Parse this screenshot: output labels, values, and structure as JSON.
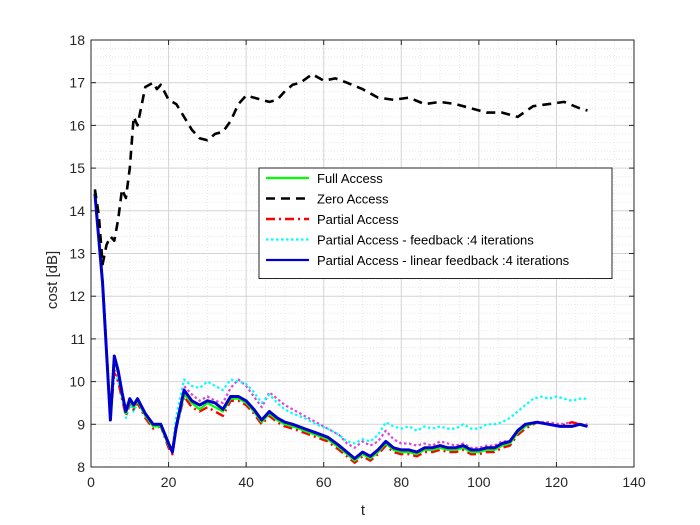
{
  "chart_data": {
    "type": "line",
    "xlabel": "t",
    "ylabel": "cost [dB]",
    "xlim": [
      0,
      140
    ],
    "ylim": [
      8,
      18
    ],
    "xticks": [
      0,
      20,
      40,
      60,
      80,
      100,
      120,
      140
    ],
    "yticks": [
      8,
      9,
      10,
      11,
      12,
      13,
      14,
      15,
      16,
      17,
      18
    ],
    "grid": true,
    "minor_grid": true,
    "legend_position": "center-right",
    "series": [
      {
        "name": "Full Access",
        "color": "#00ff00",
        "style": "solid",
        "x": [
          1,
          3,
          5,
          6,
          7,
          8,
          9,
          10,
          11,
          12,
          14,
          16,
          18,
          20,
          21,
          22,
          24,
          26,
          28,
          30,
          32,
          34,
          36,
          38,
          40,
          42,
          44,
          46,
          48,
          50,
          52,
          55,
          58,
          61,
          64,
          66,
          68,
          70,
          72,
          74,
          76,
          78,
          80,
          82,
          84,
          86,
          88,
          90,
          92,
          94,
          96,
          98,
          100,
          102,
          104,
          106,
          108,
          110,
          112,
          115,
          118,
          121,
          124,
          126,
          128
        ],
        "y": [
          14.45,
          12.3,
          9.15,
          10.5,
          10.2,
          9.7,
          9.25,
          9.55,
          9.4,
          9.55,
          9.2,
          8.95,
          8.95,
          8.5,
          8.35,
          8.9,
          9.7,
          9.5,
          9.35,
          9.5,
          9.4,
          9.3,
          9.6,
          9.6,
          9.5,
          9.3,
          9.05,
          9.25,
          9.1,
          9.0,
          8.95,
          8.85,
          8.75,
          8.65,
          8.45,
          8.3,
          8.15,
          8.3,
          8.2,
          8.35,
          8.55,
          8.4,
          8.35,
          8.35,
          8.3,
          8.4,
          8.4,
          8.45,
          8.4,
          8.4,
          8.45,
          8.35,
          8.35,
          8.4,
          8.4,
          8.5,
          8.55,
          8.8,
          8.95,
          9.05,
          9.0,
          8.95,
          8.95,
          9.0,
          8.95
        ]
      },
      {
        "name": "Zero Access",
        "color": "#000000",
        "style": "dashed",
        "x": [
          1,
          2,
          3,
          4,
          5,
          6,
          7,
          8,
          9,
          10,
          11,
          12,
          14,
          16,
          17,
          18,
          20,
          22,
          24,
          26,
          28,
          30,
          32,
          34,
          36,
          38,
          40,
          42,
          44,
          46,
          48,
          50,
          52,
          54,
          57,
          60,
          63,
          66,
          70,
          74,
          78,
          82,
          86,
          90,
          94,
          98,
          102,
          106,
          110,
          114,
          118,
          122,
          126,
          128
        ],
        "y": [
          14.5,
          13.9,
          12.75,
          13.2,
          13.4,
          13.3,
          13.8,
          14.5,
          14.3,
          15.0,
          16.2,
          16.0,
          16.9,
          17.0,
          16.85,
          16.95,
          16.6,
          16.5,
          16.2,
          15.9,
          15.7,
          15.65,
          15.8,
          15.85,
          16.1,
          16.5,
          16.7,
          16.65,
          16.6,
          16.55,
          16.6,
          16.8,
          16.95,
          17.0,
          17.2,
          17.05,
          17.1,
          17.0,
          16.85,
          16.65,
          16.6,
          16.65,
          16.5,
          16.55,
          16.5,
          16.4,
          16.3,
          16.3,
          16.2,
          16.45,
          16.5,
          16.55,
          16.4,
          16.35
        ]
      },
      {
        "name": "Partial Access",
        "color": "#ff0000",
        "style": "dashdot",
        "x": [
          1,
          3,
          5,
          6,
          7,
          8,
          9,
          10,
          11,
          12,
          14,
          16,
          18,
          20,
          21,
          22,
          24,
          26,
          28,
          30,
          32,
          34,
          36,
          38,
          40,
          42,
          44,
          46,
          48,
          50,
          52,
          55,
          58,
          61,
          64,
          66,
          68,
          70,
          72,
          74,
          76,
          78,
          80,
          82,
          84,
          86,
          88,
          90,
          92,
          94,
          96,
          98,
          100,
          102,
          104,
          106,
          108,
          110,
          112,
          115,
          118,
          121,
          124,
          126,
          128
        ],
        "y": [
          14.45,
          12.3,
          9.15,
          10.2,
          10.0,
          9.6,
          9.2,
          9.5,
          9.35,
          9.5,
          9.15,
          8.9,
          8.95,
          8.45,
          8.3,
          8.9,
          9.65,
          9.4,
          9.3,
          9.4,
          9.3,
          9.2,
          9.55,
          9.55,
          9.45,
          9.25,
          9.0,
          9.2,
          9.05,
          8.95,
          8.9,
          8.8,
          8.7,
          8.6,
          8.4,
          8.25,
          8.1,
          8.25,
          8.15,
          8.3,
          8.5,
          8.35,
          8.3,
          8.3,
          8.25,
          8.35,
          8.35,
          8.4,
          8.35,
          8.35,
          8.4,
          8.3,
          8.3,
          8.35,
          8.35,
          8.45,
          8.5,
          8.75,
          8.9,
          9.05,
          9.0,
          8.95,
          9.05,
          9.0,
          8.95
        ]
      },
      {
        "name": "Partial Access - feedback :4 iterations",
        "color": "#00ffff",
        "style": "dotted",
        "x": [
          1,
          3,
          5,
          6,
          7,
          8,
          9,
          10,
          11,
          12,
          14,
          16,
          18,
          20,
          21,
          22,
          24,
          26,
          28,
          30,
          32,
          34,
          36,
          38,
          40,
          42,
          44,
          46,
          48,
          50,
          52,
          55,
          58,
          61,
          64,
          66,
          68,
          70,
          72,
          74,
          76,
          78,
          80,
          82,
          84,
          86,
          88,
          90,
          92,
          94,
          96,
          98,
          100,
          102,
          104,
          106,
          108,
          110,
          112,
          114,
          116,
          118,
          120,
          122,
          124,
          126,
          128
        ],
        "y": [
          14.5,
          12.4,
          9.2,
          10.2,
          10.0,
          9.6,
          9.15,
          9.45,
          9.3,
          9.5,
          9.2,
          9.0,
          9.0,
          8.5,
          8.4,
          9.2,
          10.05,
          9.9,
          9.85,
          10.0,
          9.9,
          9.8,
          10.05,
          10.0,
          9.95,
          9.75,
          9.5,
          9.7,
          9.5,
          9.35,
          9.25,
          9.15,
          9.0,
          8.9,
          8.75,
          8.6,
          8.55,
          8.65,
          8.6,
          8.75,
          9.05,
          8.95,
          8.9,
          8.95,
          8.85,
          8.95,
          8.9,
          8.95,
          8.9,
          8.9,
          9.0,
          8.9,
          8.9,
          9.0,
          9.0,
          9.05,
          9.15,
          9.3,
          9.45,
          9.6,
          9.65,
          9.6,
          9.65,
          9.6,
          9.55,
          9.6,
          9.6
        ]
      },
      {
        "name": "Partial Access - linear feedback :4 iterations",
        "color": "#0000cd",
        "style": "solid",
        "x": [
          1,
          3,
          5,
          6,
          7,
          8,
          9,
          10,
          11,
          12,
          14,
          16,
          18,
          20,
          21,
          22,
          24,
          26,
          28,
          30,
          32,
          34,
          36,
          38,
          40,
          42,
          44,
          46,
          48,
          50,
          52,
          55,
          58,
          61,
          64,
          66,
          68,
          70,
          72,
          74,
          76,
          78,
          80,
          82,
          84,
          86,
          88,
          90,
          92,
          94,
          96,
          98,
          100,
          102,
          104,
          106,
          108,
          110,
          112,
          115,
          118,
          121,
          124,
          126,
          128
        ],
        "y": [
          14.4,
          12.3,
          9.1,
          10.6,
          10.25,
          9.75,
          9.3,
          9.6,
          9.45,
          9.6,
          9.25,
          9.0,
          9.0,
          8.55,
          8.35,
          8.95,
          9.8,
          9.55,
          9.45,
          9.55,
          9.5,
          9.35,
          9.65,
          9.65,
          9.55,
          9.35,
          9.1,
          9.3,
          9.15,
          9.05,
          9.0,
          8.9,
          8.8,
          8.7,
          8.5,
          8.35,
          8.2,
          8.35,
          8.25,
          8.4,
          8.6,
          8.45,
          8.4,
          8.4,
          8.35,
          8.45,
          8.45,
          8.5,
          8.45,
          8.45,
          8.5,
          8.4,
          8.4,
          8.45,
          8.45,
          8.55,
          8.6,
          8.85,
          9.0,
          9.05,
          9.0,
          8.95,
          8.95,
          9.0,
          8.95
        ]
      },
      {
        "name": "",
        "color": "#dd44dd",
        "style": "dotted",
        "x": [
          1,
          3,
          5,
          6,
          7,
          8,
          9,
          10,
          11,
          12,
          14,
          16,
          18,
          20,
          21,
          22,
          24,
          26,
          28,
          30,
          32,
          34,
          36,
          38,
          40,
          42,
          44,
          46,
          48,
          50,
          52,
          55,
          58,
          61,
          64,
          66,
          68,
          70,
          72,
          74,
          76,
          78,
          80,
          82,
          84,
          86,
          88,
          90,
          92,
          94,
          96,
          98,
          100,
          102,
          104,
          106,
          108,
          110,
          112,
          115,
          118,
          121,
          124,
          126,
          128
        ],
        "y": [
          14.5,
          12.4,
          9.2,
          10.3,
          10.05,
          9.65,
          9.25,
          9.5,
          9.35,
          9.5,
          9.25,
          9.0,
          9.0,
          8.5,
          8.4,
          9.05,
          9.9,
          9.7,
          9.55,
          9.65,
          9.55,
          9.5,
          9.85,
          10.05,
          9.9,
          9.65,
          9.4,
          9.75,
          9.6,
          9.45,
          9.35,
          9.2,
          9.05,
          8.9,
          8.75,
          8.55,
          8.45,
          8.6,
          8.5,
          8.6,
          8.85,
          8.65,
          8.55,
          8.55,
          8.5,
          8.55,
          8.5,
          8.6,
          8.55,
          8.5,
          8.55,
          8.45,
          8.45,
          8.5,
          8.5,
          8.6,
          8.6,
          8.85,
          8.95,
          9.05,
          9.05,
          9.0,
          9.05,
          9.0,
          9.0
        ]
      }
    ]
  }
}
